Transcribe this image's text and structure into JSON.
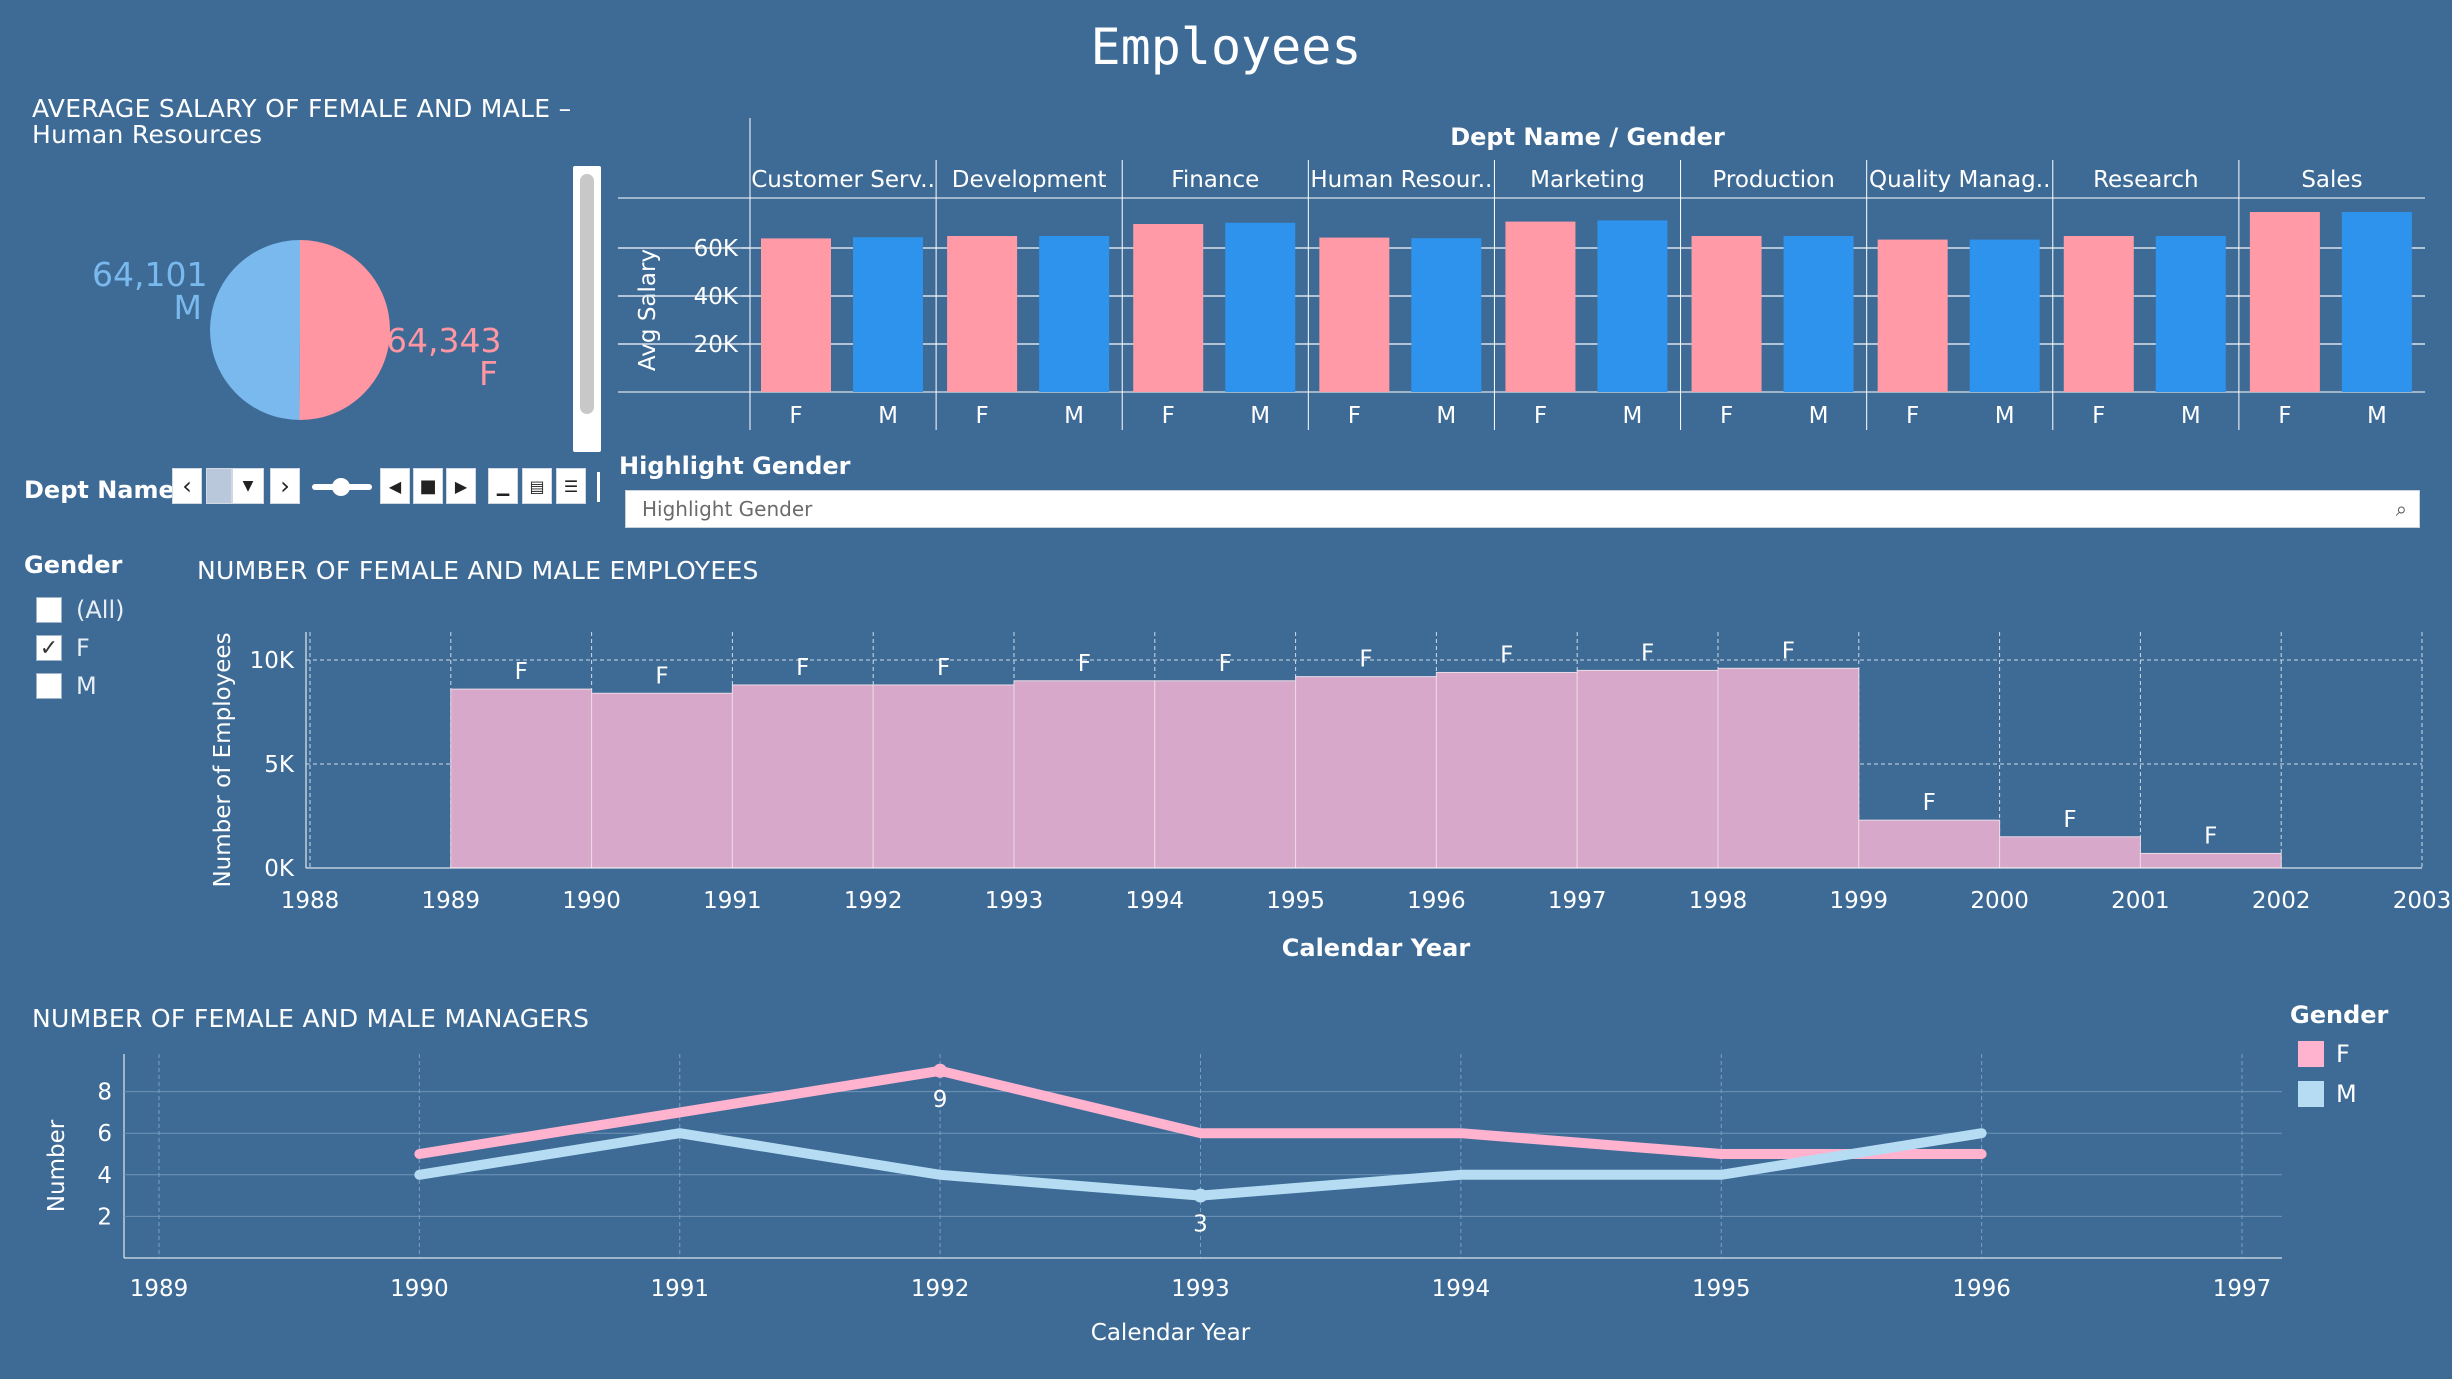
{
  "page_title": "Employees",
  "colors": {
    "background": "#3e6b96",
    "female_bar": "#ff9aa6",
    "male_bar": "#2e93ec",
    "pie_female": "#ff96a2",
    "pie_male": "#7ab9ee",
    "hist_fill": "#d7a8c9",
    "line_female": "#ffb3cf",
    "line_male": "#b6dcf4"
  },
  "pie": {
    "title": "AVERAGE SALARY OF FEMALE AND MALE –",
    "subtitle": "Human Resources",
    "male_value": "64,101",
    "male_label": "M",
    "female_value": "64,343",
    "female_label": "F"
  },
  "dept_filter": {
    "label": "Dept Name",
    "prev_icon": "chevron-left-icon",
    "next_icon": "chevron-right-icon",
    "dropdown_icon": "caret-down-icon"
  },
  "highlight": {
    "label": "Highlight Gender",
    "placeholder": "Highlight Gender",
    "icon": "search-icon"
  },
  "gender_filter": {
    "label": "Gender",
    "options": [
      {
        "label": "(All)",
        "checked": false
      },
      {
        "label": "F",
        "checked": true
      },
      {
        "label": "M",
        "checked": false
      }
    ]
  },
  "legend": {
    "title": "Gender",
    "items": [
      {
        "label": "F",
        "color": "#ffb3cf"
      },
      {
        "label": "M",
        "color": "#b6dcf4"
      }
    ]
  },
  "chart_data": [
    {
      "type": "bar",
      "title": "Dept Name / Gender",
      "ylabel": "Avg Salary",
      "yticks": [
        "20K",
        "40K",
        "60K"
      ],
      "ylim": [
        0,
        80000
      ],
      "categories": [
        "Customer Serv..",
        "Development",
        "Finance",
        "Human Resour..",
        "Marketing",
        "Production",
        "Quality Manag..",
        "Research",
        "Sales"
      ],
      "sub_categories": [
        "F",
        "M"
      ],
      "series": [
        {
          "name": "F",
          "values": [
            64000,
            65000,
            70000,
            64343,
            71000,
            65000,
            63500,
            65000,
            75000
          ]
        },
        {
          "name": "M",
          "values": [
            64500,
            65000,
            70500,
            64101,
            71500,
            65000,
            63500,
            65000,
            75000
          ]
        }
      ]
    },
    {
      "type": "bar",
      "title": "NUMBER OF FEMALE AND MALE EMPLOYEES",
      "xlabel": "Calendar Year",
      "ylabel": "Number of Employees",
      "yticks": [
        "0K",
        "5K",
        "10K"
      ],
      "ylim": [
        0,
        11000
      ],
      "x_ticks": [
        "1988",
        "1989",
        "1990",
        "1991",
        "1992",
        "1993",
        "1994",
        "1995",
        "1996",
        "1997",
        "1998",
        "1999",
        "2000",
        "2001",
        "2002",
        "2003"
      ],
      "bins": [
        1989,
        1990,
        1991,
        1992,
        1993,
        1994,
        1995,
        1996,
        1997,
        1998,
        1999,
        2000,
        2001
      ],
      "values": [
        8600,
        8400,
        8800,
        8800,
        9000,
        9000,
        9200,
        9400,
        9500,
        9600,
        2300,
        1500,
        700
      ],
      "bar_label": "F"
    },
    {
      "type": "line",
      "title": "NUMBER OF FEMALE AND MALE MANAGERS",
      "xlabel": "Calendar Year",
      "ylabel": "Number",
      "yticks": [
        "2",
        "4",
        "6",
        "8"
      ],
      "ylim": [
        0,
        10
      ],
      "x_ticks": [
        "1989",
        "1990",
        "1991",
        "1992",
        "1993",
        "1994",
        "1995",
        "1996",
        "1997"
      ],
      "series": [
        {
          "name": "F",
          "x": [
            1990,
            1991,
            1992,
            1993,
            1994,
            1995,
            1996
          ],
          "values": [
            5,
            7,
            9,
            6,
            6,
            5,
            5
          ]
        },
        {
          "name": "M",
          "x": [
            1990,
            1991,
            1992,
            1993,
            1994,
            1995,
            1996
          ],
          "values": [
            4,
            6,
            4,
            3,
            4,
            4,
            6
          ]
        }
      ],
      "annotations": [
        {
          "series": "F",
          "x": 1992,
          "label": "9"
        },
        {
          "series": "M",
          "x": 1993,
          "label": "3"
        }
      ]
    }
  ]
}
